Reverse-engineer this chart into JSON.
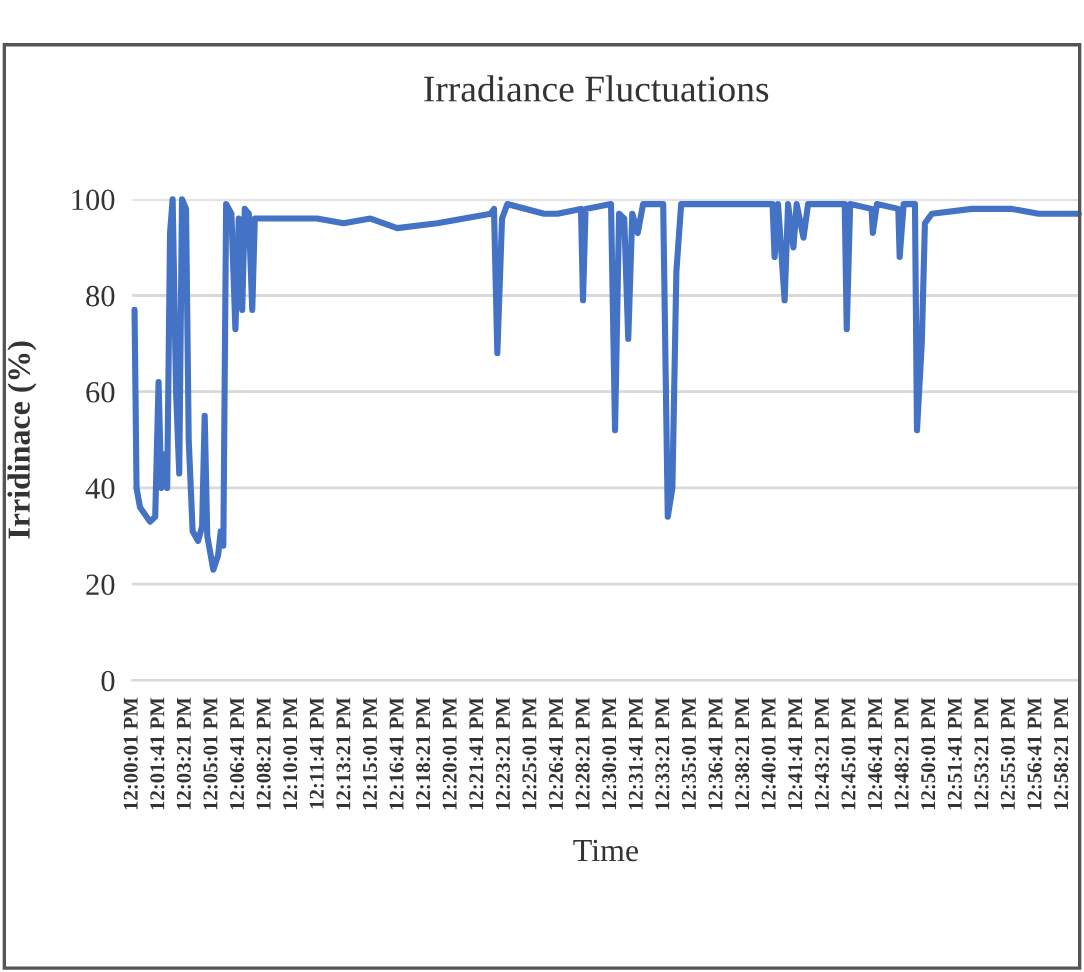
{
  "chart_data": {
    "type": "line",
    "title": "Irradiance Fluctuations",
    "xlabel": "Time",
    "ylabel": "Irridinace (%)",
    "x": [
      12.0024,
      12.0045,
      12.0081,
      12.0185,
      12.024,
      12.0275,
      12.0303,
      12.0338,
      12.0365,
      12.0395,
      12.0422,
      12.0458,
      12.0491,
      12.052,
      12.0562,
      12.059,
      12.0631,
      12.0688,
      12.073,
      12.0757,
      12.0784,
      12.0847,
      12.0897,
      12.0925,
      12.0952,
      12.0981,
      12.1036,
      12.1078,
      12.1113,
      12.1149,
      12.1176,
      12.1218,
      12.1254,
      12.1281,
      12.1442,
      12.193,
      12.2209,
      12.2489,
      12.2768,
      12.3187,
      12.3746,
      12.378,
      12.3815,
      12.3864,
      12.392,
      12.4303,
      12.4444,
      12.4689,
      12.471,
      12.4737,
      12.5003,
      12.5045,
      12.5087,
      12.5141,
      12.5183,
      12.5225,
      12.5282,
      12.5338,
      12.5548,
      12.5596,
      12.5644,
      12.5686,
      12.5736,
      12.626,
      12.6691,
      12.6712,
      12.6748,
      12.6817,
      12.6853,
      12.6909,
      12.6943,
      12.7014,
      12.7062,
      12.7445,
      12.7466,
      12.7502,
      12.7726,
      12.7739,
      12.7781,
      12.8005,
      12.8019,
      12.8061,
      12.8179,
      12.82,
      12.825,
      12.8283,
      12.8355,
      12.8774,
      12.9192,
      12.9471,
      12.989
    ],
    "series": [
      {
        "color": "#4472c4",
        "values": [
          77,
          40,
          36,
          33,
          34,
          62,
          40,
          47,
          40,
          93,
          100,
          60,
          43,
          100,
          98,
          50,
          31,
          29,
          32,
          55,
          30,
          23,
          26,
          31,
          28,
          99,
          97,
          73,
          96,
          77,
          98,
          97,
          77,
          96,
          96,
          96,
          95,
          96,
          94,
          95,
          97,
          98,
          68,
          96,
          99,
          97,
          97,
          98,
          79,
          98,
          99,
          52,
          97,
          96,
          71,
          97,
          93,
          99,
          99,
          34,
          40,
          85,
          99,
          99,
          99,
          88,
          99,
          79,
          99,
          90,
          99,
          92,
          99,
          99,
          73,
          99,
          98,
          93,
          99,
          98,
          88,
          99,
          99,
          52,
          70,
          95,
          97,
          98,
          98,
          97,
          97
        ]
      }
    ],
    "xlim": [
      12.0,
      12.99
    ],
    "ylim": [
      0,
      100
    ],
    "yticks": [
      0,
      20,
      40,
      60,
      80,
      100
    ],
    "xticks": [
      {
        "value": 12.0003,
        "label": "12:00:01 PM"
      },
      {
        "value": 12.0281,
        "label": "12:01:41 PM"
      },
      {
        "value": 12.0558,
        "label": "12:03:21 PM"
      },
      {
        "value": 12.0836,
        "label": "12:05:01 PM"
      },
      {
        "value": 12.1114,
        "label": "12:06:41 PM"
      },
      {
        "value": 12.1392,
        "label": "12:08:21 PM"
      },
      {
        "value": 12.1669,
        "label": "12:10:01 PM"
      },
      {
        "value": 12.1947,
        "label": "12:11:41 PM"
      },
      {
        "value": 12.2225,
        "label": "12:13:21 PM"
      },
      {
        "value": 12.2503,
        "label": "12:15:01 PM"
      },
      {
        "value": 12.2781,
        "label": "12:16:41 PM"
      },
      {
        "value": 12.3058,
        "label": "12:18:21 PM"
      },
      {
        "value": 12.3336,
        "label": "12:20:01 PM"
      },
      {
        "value": 12.3614,
        "label": "12:21:41 PM"
      },
      {
        "value": 12.3892,
        "label": "12:23:21 PM"
      },
      {
        "value": 12.4169,
        "label": "12:25:01 PM"
      },
      {
        "value": 12.4447,
        "label": "12:26:41 PM"
      },
      {
        "value": 12.4725,
        "label": "12:28:21 PM"
      },
      {
        "value": 12.5003,
        "label": "12:30:01 PM"
      },
      {
        "value": 12.5281,
        "label": "12:31:41 PM"
      },
      {
        "value": 12.5558,
        "label": "12:33:21 PM"
      },
      {
        "value": 12.5836,
        "label": "12:35:01 PM"
      },
      {
        "value": 12.6114,
        "label": "12:36:41 PM"
      },
      {
        "value": 12.6392,
        "label": "12:38:21 PM"
      },
      {
        "value": 12.6669,
        "label": "12:40:01 PM"
      },
      {
        "value": 12.6947,
        "label": "12:41:41 PM"
      },
      {
        "value": 12.7225,
        "label": "12:43:21 PM"
      },
      {
        "value": 12.7503,
        "label": "12:45:01 PM"
      },
      {
        "value": 12.7781,
        "label": "12:46:41 PM"
      },
      {
        "value": 12.8058,
        "label": "12:48:21 PM"
      },
      {
        "value": 12.8336,
        "label": "12:50:01 PM"
      },
      {
        "value": 12.8614,
        "label": "12:51:41 PM"
      },
      {
        "value": 12.8892,
        "label": "12:53:21 PM"
      },
      {
        "value": 12.9169,
        "label": "12:55:01 PM"
      },
      {
        "value": 12.9447,
        "label": "12:56:41 PM"
      },
      {
        "value": 12.9725,
        "label": "12:58:21 PM"
      }
    ],
    "grid": "y",
    "legend": false
  }
}
